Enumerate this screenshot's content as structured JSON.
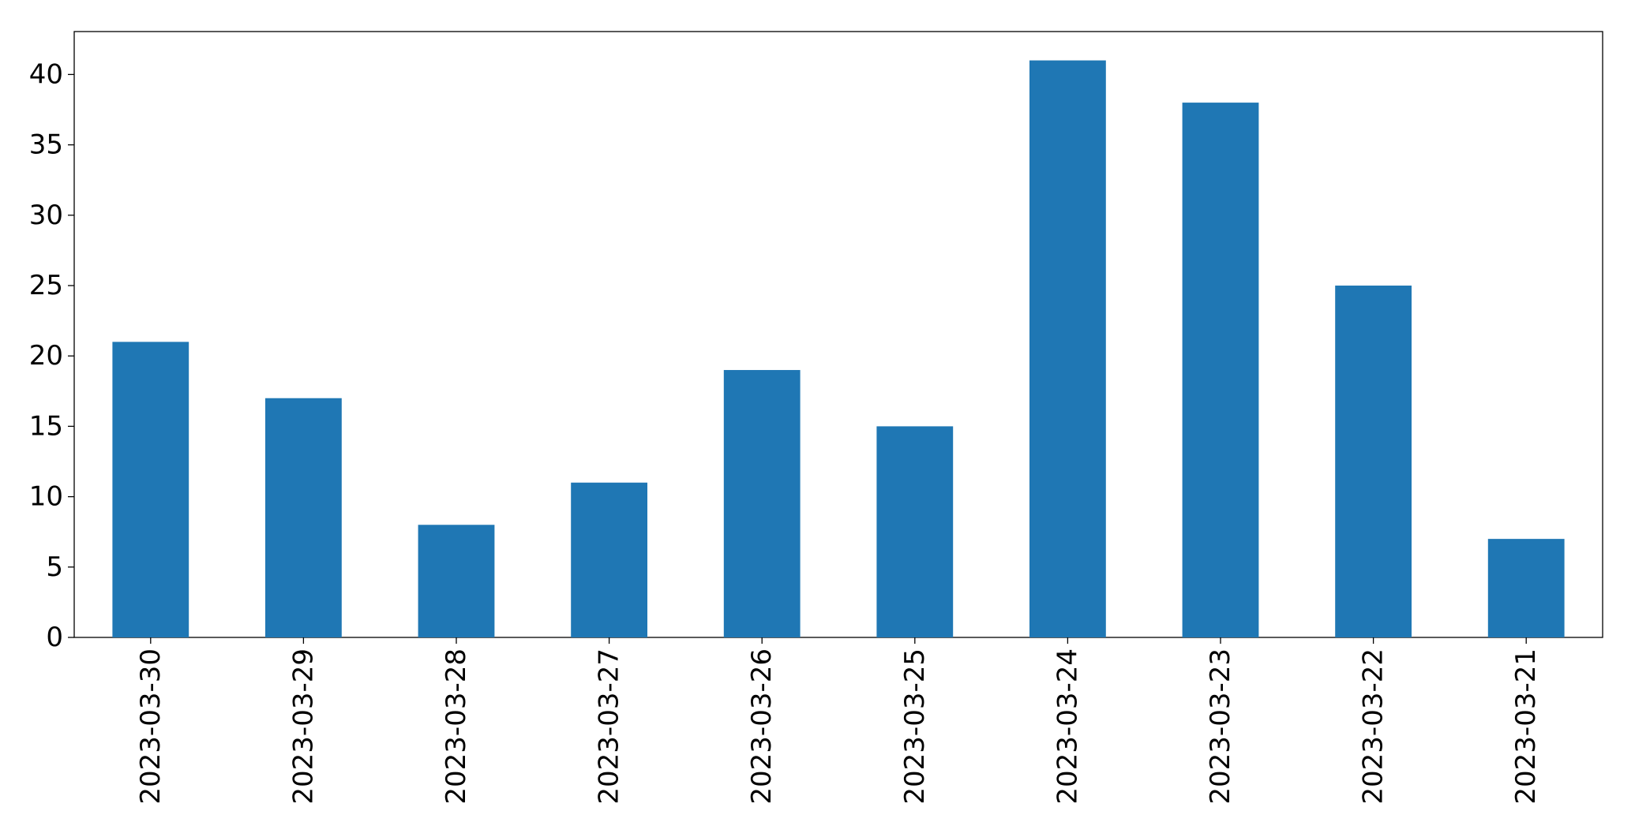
{
  "chart_data": {
    "type": "bar",
    "categories": [
      "2023-03-30",
      "2023-03-29",
      "2023-03-28",
      "2023-03-27",
      "2023-03-26",
      "2023-03-25",
      "2023-03-24",
      "2023-03-23",
      "2023-03-22",
      "2023-03-21"
    ],
    "values": [
      21,
      17,
      8,
      11,
      19,
      15,
      41,
      38,
      25,
      7
    ],
    "color": "#1f77b4",
    "ylim": [
      0,
      43.05
    ],
    "yticks": [
      0,
      5,
      10,
      15,
      20,
      25,
      30,
      35,
      40
    ],
    "grid": false
  }
}
